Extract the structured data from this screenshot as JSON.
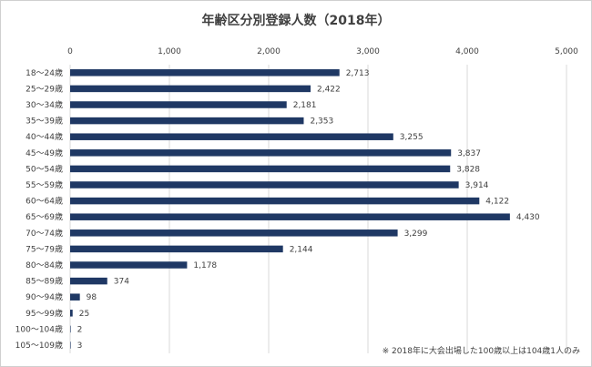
{
  "chart_data": {
    "type": "bar",
    "orientation": "horizontal",
    "title": "年齢区分別登録人数（2018年）",
    "categories": [
      "18～24歳",
      "25～29歳",
      "30～34歳",
      "35～39歳",
      "40～44歳",
      "45～49歳",
      "50～54歳",
      "55～59歳",
      "60～64歳",
      "65～69歳",
      "70～74歳",
      "75～79歳",
      "80～84歳",
      "85～89歳",
      "90～94歳",
      "95～99歳",
      "100～104歳",
      "105～109歳"
    ],
    "values": [
      2713,
      2422,
      2181,
      2353,
      3255,
      3837,
      3828,
      3914,
      4122,
      4430,
      3299,
      2144,
      1178,
      374,
      98,
      25,
      2,
      3
    ],
    "data_labels": [
      "2,713",
      "2,422",
      "2,181",
      "2,353",
      "3,255",
      "3,837",
      "3,828",
      "3,914",
      "4,122",
      "4,430",
      "3,299",
      "2,144",
      "1,178",
      "374",
      "98",
      "25",
      "2",
      "3"
    ],
    "xlim": [
      0,
      5000
    ],
    "x_ticks": [
      0,
      1000,
      2000,
      3000,
      4000,
      5000
    ],
    "x_tick_labels": [
      "0",
      "1,000",
      "2,000",
      "3,000",
      "4,000",
      "5,000"
    ],
    "axis_position": "top",
    "grid": true,
    "legend": "none",
    "bar_color": "#1f3864",
    "note": "※ 2018年に大会出場した100歳以上は104歳1人のみ"
  }
}
